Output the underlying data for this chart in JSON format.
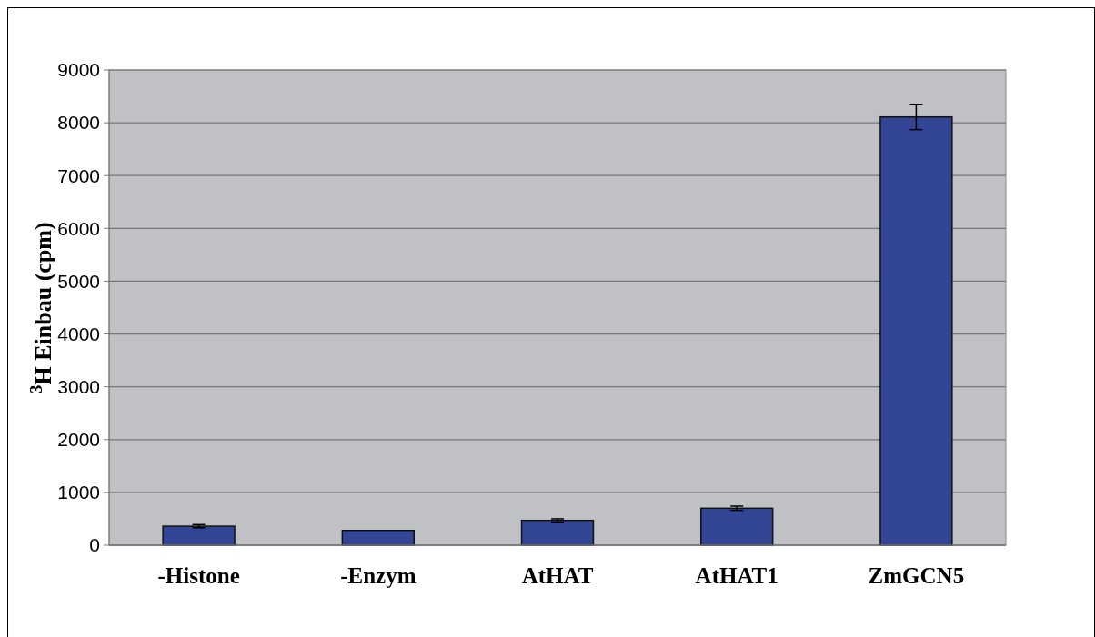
{
  "chart_data": {
    "type": "bar",
    "ylabel": "$^{3}$H Einbau (cpm)",
    "categories": [
      "-Histone",
      "-Enzym",
      "AtHAT",
      "AtHAT1",
      "ZmGCN5"
    ],
    "series": [
      {
        "color": "#334696",
        "values": [
          360,
          280,
          470,
          700,
          8110
        ],
        "errors": [
          30,
          null,
          30,
          40,
          240
        ]
      }
    ],
    "ylim": [
      0,
      9000
    ],
    "yticks": [
      0,
      1000,
      2000,
      3000,
      4000,
      5000,
      6000,
      7000,
      8000,
      9000
    ],
    "grid": "y"
  }
}
